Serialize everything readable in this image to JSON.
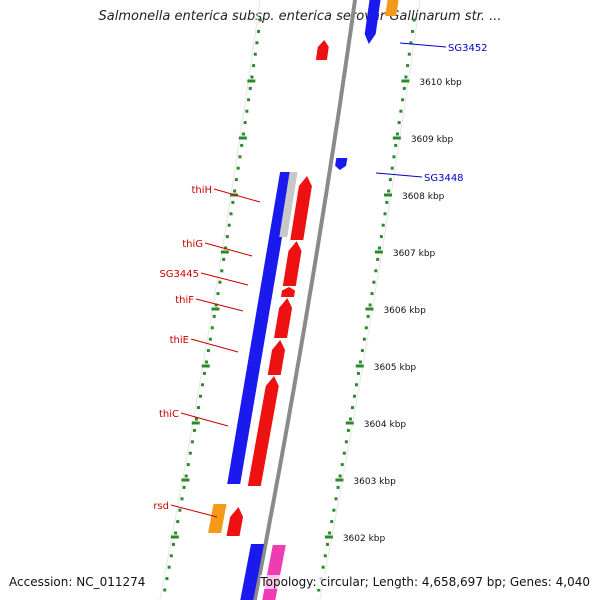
{
  "title": "Salmonella enterica subsp. enterica serovar Gallinarum str. ...",
  "footer": {
    "accession": "Accession: NC_011274",
    "summary": "Topology: circular; Length: 4,658,697 bp; Genes: 4,040"
  },
  "colors": {
    "background": "#ffffff",
    "backbone": "#8a8a8a",
    "forward_gene": "#ee1111",
    "reverse_gene": "#1a1aee",
    "grey_gene": "#c8c8c8",
    "orange_gene": "#f39a1a",
    "pink_gene": "#f03cb4",
    "tick": "#2a8a2a",
    "label_red": "#cc0000",
    "label_blue": "#0000cc"
  },
  "scale": {
    "ticks": [
      {
        "label": "3610 kbp",
        "value_kbp": 3610
      },
      {
        "label": "3609 kbp",
        "value_kbp": 3609
      },
      {
        "label": "3608 kbp",
        "value_kbp": 3608
      },
      {
        "label": "3607 kbp",
        "value_kbp": 3607
      },
      {
        "label": "3606 kbp",
        "value_kbp": 3606
      },
      {
        "label": "3605 kbp",
        "value_kbp": 3605
      },
      {
        "label": "3604 kbp",
        "value_kbp": 3604
      },
      {
        "label": "3603 kbp",
        "value_kbp": 3603
      },
      {
        "label": "3602 kbp",
        "value_kbp": 3602
      }
    ]
  },
  "gene_labels": [
    {
      "name": "thiH",
      "color": "red"
    },
    {
      "name": "thiG",
      "color": "red"
    },
    {
      "name": "SG3445",
      "color": "red"
    },
    {
      "name": "thiF",
      "color": "red"
    },
    {
      "name": "thiE",
      "color": "red"
    },
    {
      "name": "thiC",
      "color": "red"
    },
    {
      "name": "rsd",
      "color": "red"
    },
    {
      "name": "SG3452",
      "color": "blue"
    },
    {
      "name": "SG3448",
      "color": "blue"
    }
  ]
}
